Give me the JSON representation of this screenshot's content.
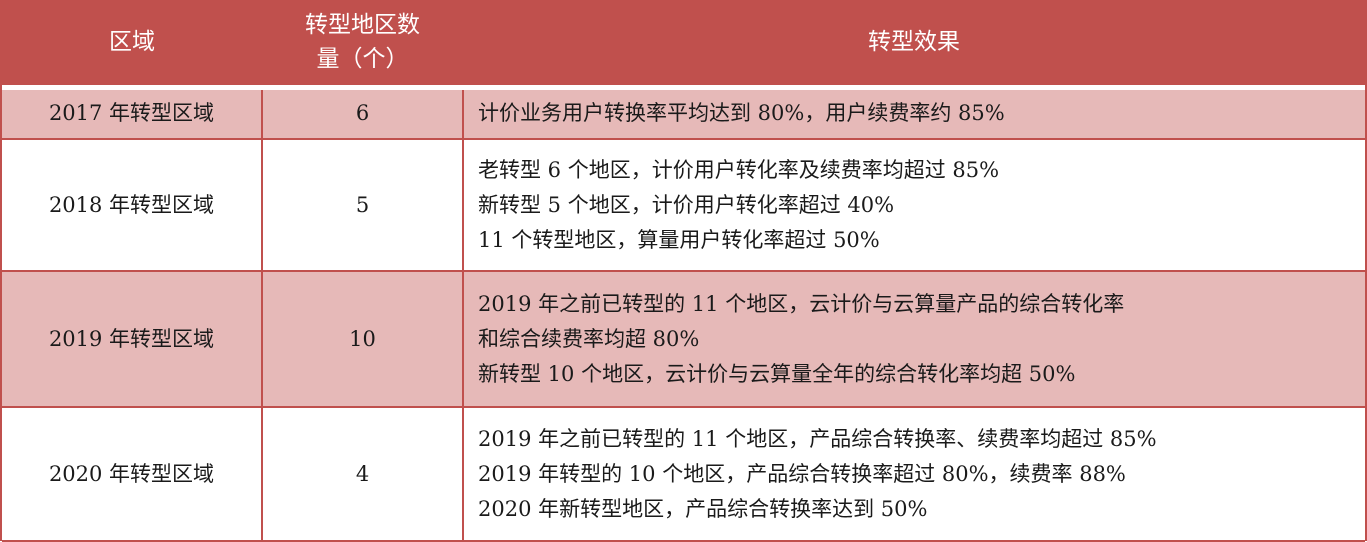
{
  "header": {
    "col1": "区域",
    "col2_line1": "转型地区数",
    "col2_line2": "量（个）",
    "col3": "转型效果"
  },
  "rows": [
    {
      "region": "2017 年转型区域",
      "count": "6",
      "effects": [
        "计价业务用户转换率平均达到 80%，用户续费率约 85%"
      ]
    },
    {
      "region": "2018 年转型区域",
      "count": "5",
      "effects": [
        "老转型 6 个地区，计价用户转化率及续费率均超过 85%",
        "新转型 5 个地区，计价用户转化率超过 40%",
        "11 个转型地区，算量用户转化率超过 50%"
      ]
    },
    {
      "region": "2019 年转型区域",
      "count": "10",
      "effects": [
        "2019 年之前已转型的 11 个地区，云计价与云算量产品的综合转化率",
        "和综合续费率均超 80%",
        "新转型 10 个地区，云计价与云算量全年的综合转化率均超 50%"
      ]
    },
    {
      "region": "2020 年转型区域",
      "count": "4",
      "effects": [
        "2019 年之前已转型的 11 个地区，产品综合转换率、续费率均超过 85%",
        "2019 年转型的 10 个地区，产品综合转换率超过 80%，续费率 88%",
        "2020 年新转型地区，产品综合转换率达到 50%"
      ]
    }
  ],
  "colors": {
    "header_bg": "#c0504d",
    "header_text": "#ffffff",
    "shaded_row_bg": "#e6b9b8",
    "border": "#c0504d"
  }
}
